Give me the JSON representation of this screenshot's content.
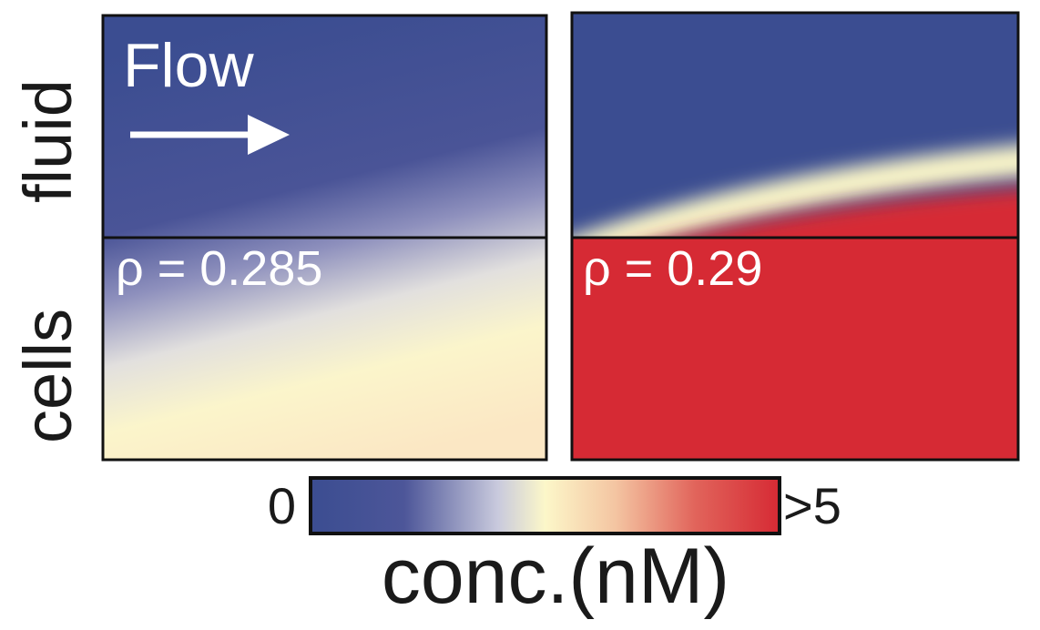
{
  "row_labels": [
    "fluid",
    "cells"
  ],
  "panels": [
    {
      "annotation": "Flow",
      "rho": "ρ = 0.285"
    },
    {
      "rho": "ρ = 0.29"
    }
  ],
  "colorbar": {
    "min_label": "0",
    "max_label": ">5",
    "label": "conc.(nM)"
  }
}
